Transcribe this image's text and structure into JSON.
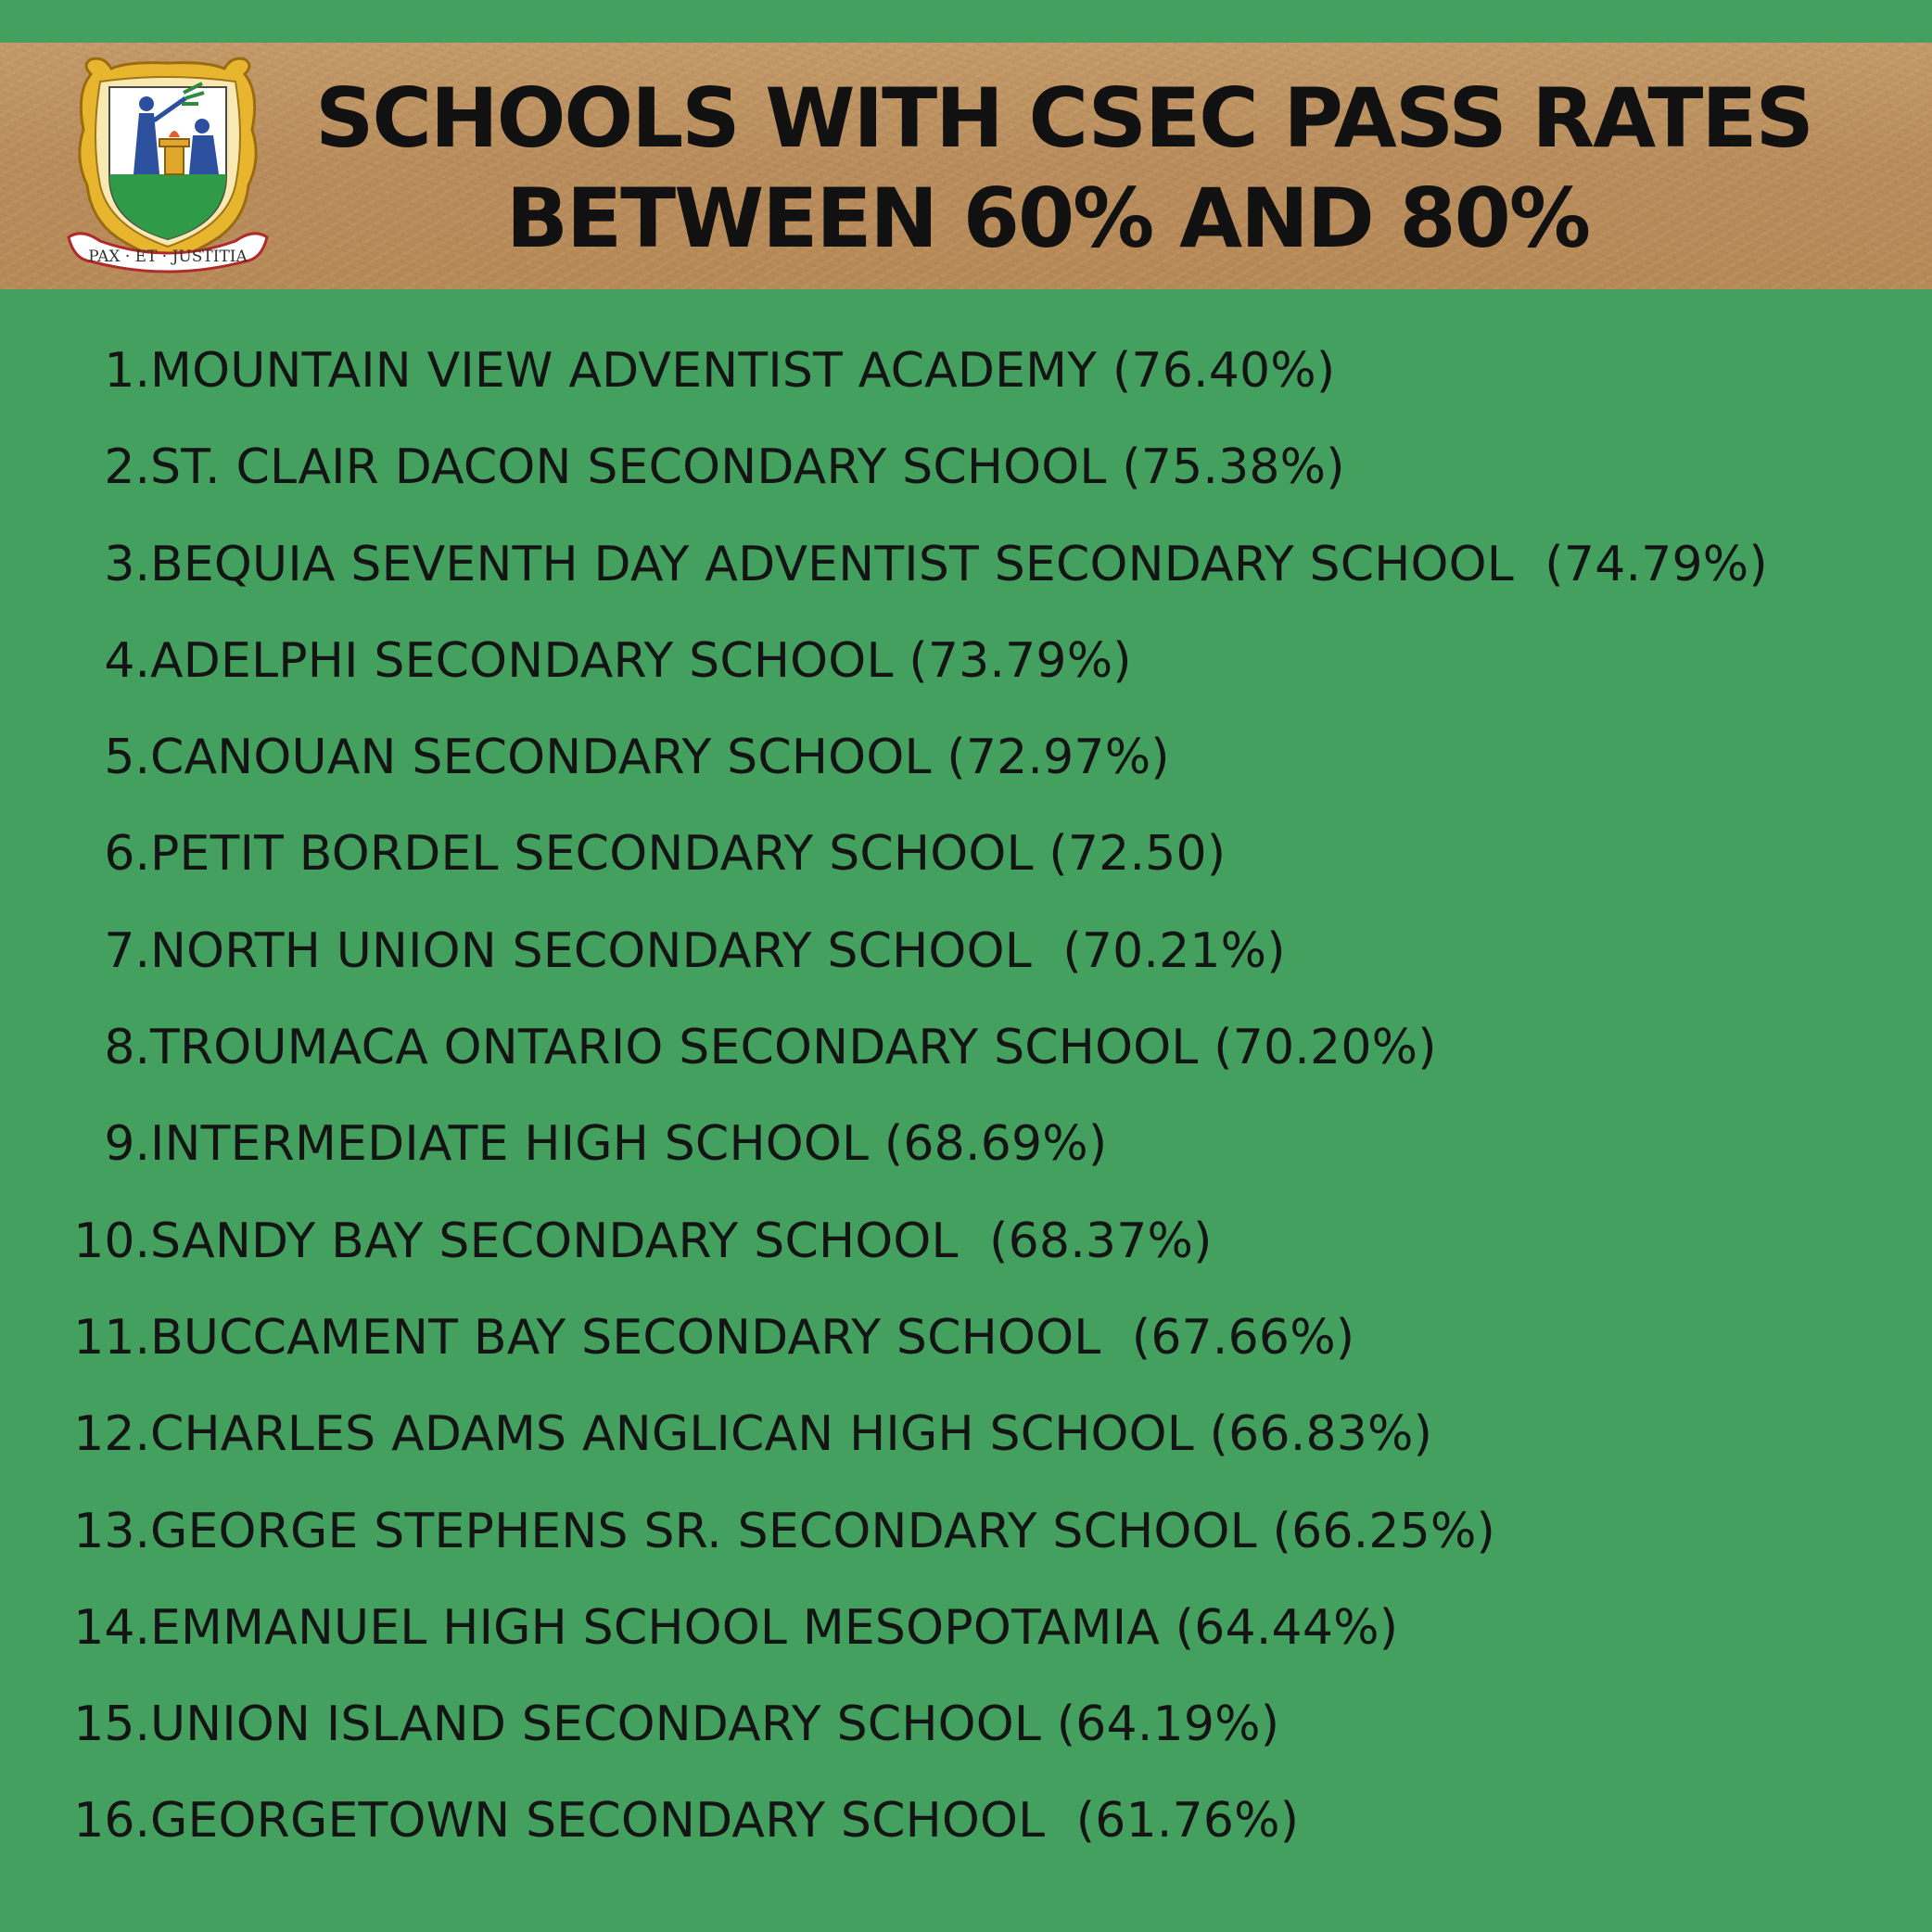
{
  "header": {
    "title_line1": "SCHOOLS WITH CSEC PASS RATES",
    "title_line2": "BETWEEN 60% AND 80%",
    "crest_motto": "PAX · ET · JUSTITIA",
    "crest_icon": "coat-of-arms-icon"
  },
  "schools": [
    {
      "num": "1.",
      "text": "MOUNTAIN VIEW ADVENTIST ACADEMY (76.40%)"
    },
    {
      "num": "2.",
      "text": "ST. CLAIR DACON SECONDARY SCHOOL (75.38%)"
    },
    {
      "num": "3.",
      "text": "BEQUIA SEVENTH DAY ADVENTIST SECONDARY SCHOOL  (74.79%)"
    },
    {
      "num": "4.",
      "text": "ADELPHI SECONDARY SCHOOL (73.79%)"
    },
    {
      "num": "5.",
      "text": "CANOUAN SECONDARY SCHOOL (72.97%)"
    },
    {
      "num": "6.",
      "text": "PETIT BORDEL SECONDARY SCHOOL (72.50)"
    },
    {
      "num": "7.",
      "text": "NORTH UNION SECONDARY SCHOOL  (70.21%)"
    },
    {
      "num": "8.",
      "text": "TROUMACA ONTARIO SECONDARY SCHOOL (70.20%)"
    },
    {
      "num": "9.",
      "text": "INTERMEDIATE HIGH SCHOOL (68.69%)"
    },
    {
      "num": "10.",
      "text": "SANDY BAY SECONDARY SCHOOL  (68.37%)"
    },
    {
      "num": "11.",
      "text": "BUCCAMENT BAY SECONDARY SCHOOL  (67.66%)"
    },
    {
      "num": "12.",
      "text": "CHARLES ADAMS ANGLICAN HIGH SCHOOL (66.83%)"
    },
    {
      "num": "13.",
      "text": "GEORGE STEPHENS SR. SECONDARY SCHOOL (66.25%)"
    },
    {
      "num": "14.",
      "text": "EMMANUEL HIGH SCHOOL MESOPOTAMIA (64.44%)"
    },
    {
      "num": "15.",
      "text": "UNION ISLAND SECONDARY SCHOOL (64.19%)"
    },
    {
      "num": "16.",
      "text": "GEORGETOWN SECONDARY SCHOOL  (61.76%)"
    }
  ],
  "colors": {
    "background": "#44a05e",
    "banner": "#bb8e5d",
    "text": "#141414"
  }
}
